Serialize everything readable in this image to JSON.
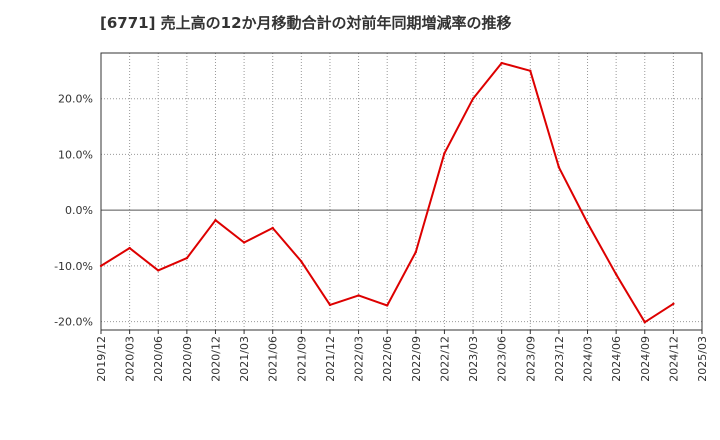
{
  "chart_data": {
    "type": "line",
    "title": "[6771]  売上高の12か月移動合計の対前年同期増減率の推移",
    "xlabel": "",
    "ylabel": "",
    "x": [
      "2019/12",
      "2020/03",
      "2020/06",
      "2020/09",
      "2020/12",
      "2021/03",
      "2021/06",
      "2021/09",
      "2021/12",
      "2022/03",
      "2022/06",
      "2022/09",
      "2022/12",
      "2023/03",
      "2023/06",
      "2023/09",
      "2023/12",
      "2024/03",
      "2024/06",
      "2024/09",
      "2024/12"
    ],
    "x_ticks": [
      "2019/12",
      "2020/03",
      "2020/06",
      "2020/09",
      "2020/12",
      "2021/03",
      "2021/06",
      "2021/09",
      "2021/12",
      "2022/03",
      "2022/06",
      "2022/09",
      "2022/12",
      "2023/03",
      "2023/06",
      "2023/09",
      "2023/12",
      "2024/03",
      "2024/06",
      "2024/09",
      "2024/12",
      "2025/03"
    ],
    "y_ticks": [
      {
        "value": 20,
        "label": "20.0%"
      },
      {
        "value": 10,
        "label": "10.0%"
      },
      {
        "value": 0,
        "label": "0.0%"
      },
      {
        "value": -10,
        "label": "-10.0%"
      },
      {
        "value": -20,
        "label": "-20.0%"
      }
    ],
    "ylim": [
      -21.5,
      28.2
    ],
    "grid": true,
    "series": [
      {
        "values": [
          -10.0,
          -6.8,
          -10.8,
          -8.6,
          -1.8,
          -5.8,
          -3.2,
          -9.2,
          -17.0,
          -15.3,
          -17.1,
          -7.5,
          10.2,
          20.0,
          26.4,
          25.0,
          7.7,
          -2.3,
          -11.5,
          -20.1,
          -16.8
        ]
      }
    ],
    "colors": {
      "line": "#dd0000",
      "grid": "#999999",
      "zero_line": "#555555",
      "frame": "#333333"
    }
  }
}
